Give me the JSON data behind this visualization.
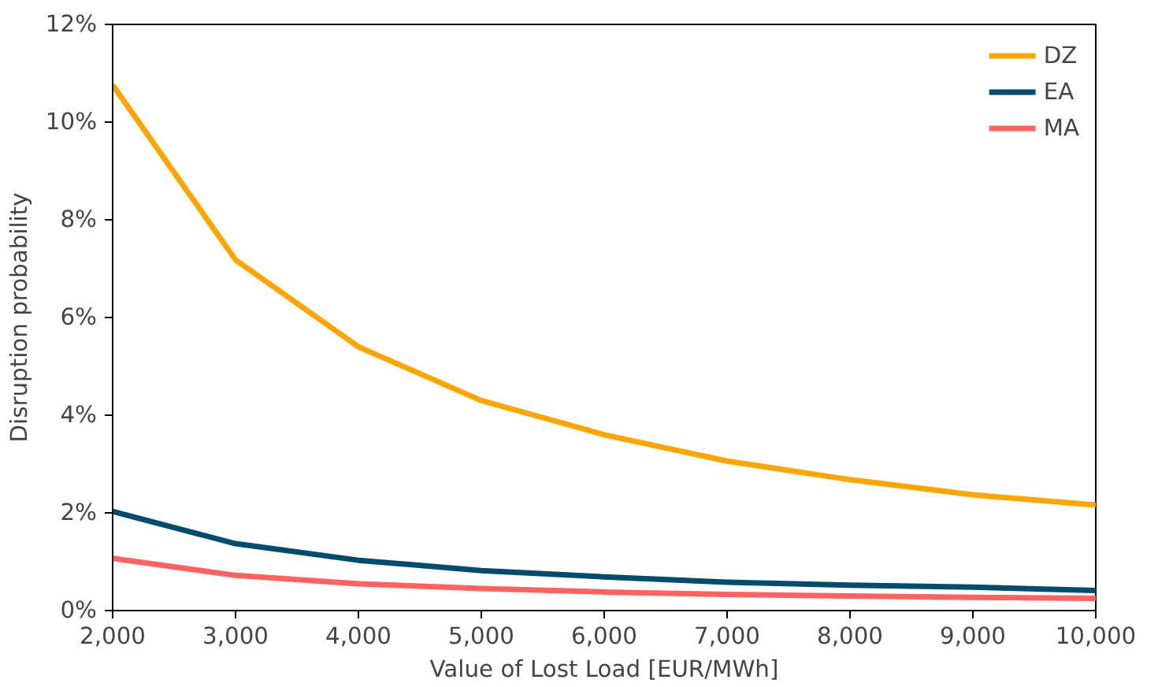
{
  "chart_data": {
    "type": "line",
    "xlabel": "Value of Lost Load [EUR/MWh]",
    "ylabel": "Disruption probability",
    "x": [
      2000,
      3000,
      4000,
      5000,
      6000,
      7000,
      8000,
      9000,
      10000
    ],
    "series": [
      {
        "name": "DZ",
        "color": "#ffa500",
        "values": [
          10.76,
          7.18,
          5.4,
          4.3,
          3.6,
          3.06,
          2.68,
          2.37,
          2.16
        ]
      },
      {
        "name": "EA",
        "color": "#004c6d",
        "values": [
          2.03,
          1.37,
          1.03,
          0.82,
          0.69,
          0.58,
          0.52,
          0.48,
          0.41
        ]
      },
      {
        "name": "MA",
        "color": "#ff6361",
        "values": [
          1.07,
          0.72,
          0.55,
          0.45,
          0.38,
          0.33,
          0.3,
          0.27,
          0.25
        ]
      }
    ],
    "xlim": [
      2000,
      10000
    ],
    "xticks": [
      {
        "value": 2000,
        "label": "2,000"
      },
      {
        "value": 3000,
        "label": "3,000"
      },
      {
        "value": 4000,
        "label": "4,000"
      },
      {
        "value": 5000,
        "label": "5,000"
      },
      {
        "value": 6000,
        "label": "6,000"
      },
      {
        "value": 7000,
        "label": "7,000"
      },
      {
        "value": 8000,
        "label": "8,000"
      },
      {
        "value": 9000,
        "label": "9,000"
      },
      {
        "value": 10000,
        "label": "10,000"
      }
    ],
    "ylim": [
      0,
      12
    ],
    "yticks": [
      {
        "value": 0,
        "label": "0%"
      },
      {
        "value": 2,
        "label": "2%"
      },
      {
        "value": 4,
        "label": "4%"
      },
      {
        "value": 6,
        "label": "6%"
      },
      {
        "value": 8,
        "label": "8%"
      },
      {
        "value": 10,
        "label": "10%"
      },
      {
        "value": 12,
        "label": "12%"
      }
    ],
    "grid": false,
    "legend": "top right",
    "marker": "none",
    "line_style": "solid"
  }
}
